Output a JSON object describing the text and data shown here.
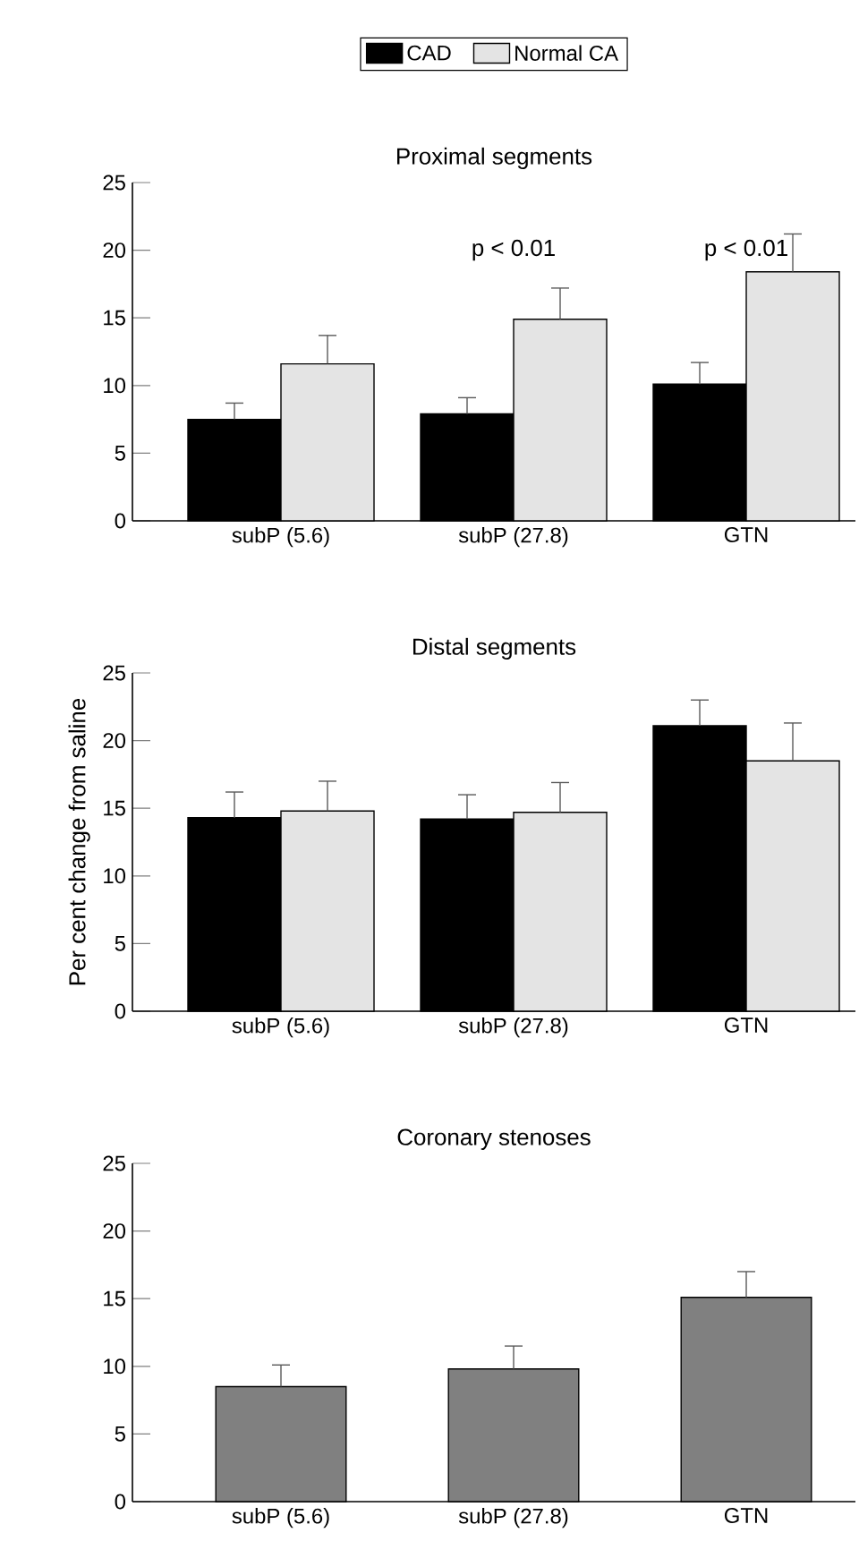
{
  "chart_data": [
    {
      "type": "bar",
      "title": "Proximal segments",
      "categories": [
        "subP (5.6)",
        "subP (27.8)",
        "GTN"
      ],
      "ylim": [
        0,
        25
      ],
      "yticks": [
        0,
        5,
        10,
        15,
        20,
        25
      ],
      "legend": "top",
      "series": [
        {
          "name": "CAD",
          "color": "#000000",
          "values": [
            7.5,
            7.9,
            10.1
          ],
          "errors": [
            1.2,
            1.2,
            1.6
          ]
        },
        {
          "name": "Normal CA",
          "color": "#e4e4e4",
          "values": [
            11.6,
            14.9,
            18.4
          ],
          "errors": [
            2.1,
            2.3,
            2.8
          ]
        }
      ],
      "annotations": [
        "p < 0.01",
        "p < 0.01"
      ]
    },
    {
      "type": "bar",
      "title": "Distal segments",
      "ylabel": "Per cent change from saline",
      "categories": [
        "subP (5.6)",
        "subP (27.8)",
        "GTN"
      ],
      "ylim": [
        0,
        25
      ],
      "yticks": [
        0,
        5,
        10,
        15,
        20,
        25
      ],
      "series": [
        {
          "color": "#000000",
          "values": [
            14.3,
            14.2,
            21.1
          ],
          "errors": [
            1.9,
            1.8,
            1.9
          ]
        },
        {
          "color": "#e4e4e4",
          "values": [
            14.8,
            14.7,
            18.5
          ],
          "errors": [
            2.2,
            2.2,
            2.8
          ]
        }
      ]
    },
    {
      "type": "bar",
      "title": "Coronary stenoses",
      "categories": [
        "subP (5.6)",
        "subP (27.8)",
        "GTN"
      ],
      "ylim": [
        0,
        25
      ],
      "yticks": [
        0,
        5,
        10,
        15,
        20,
        25
      ],
      "series": [
        {
          "color": "#808080",
          "values": [
            8.5,
            9.8,
            15.1
          ],
          "errors": [
            1.6,
            1.7,
            1.9
          ]
        }
      ]
    }
  ]
}
